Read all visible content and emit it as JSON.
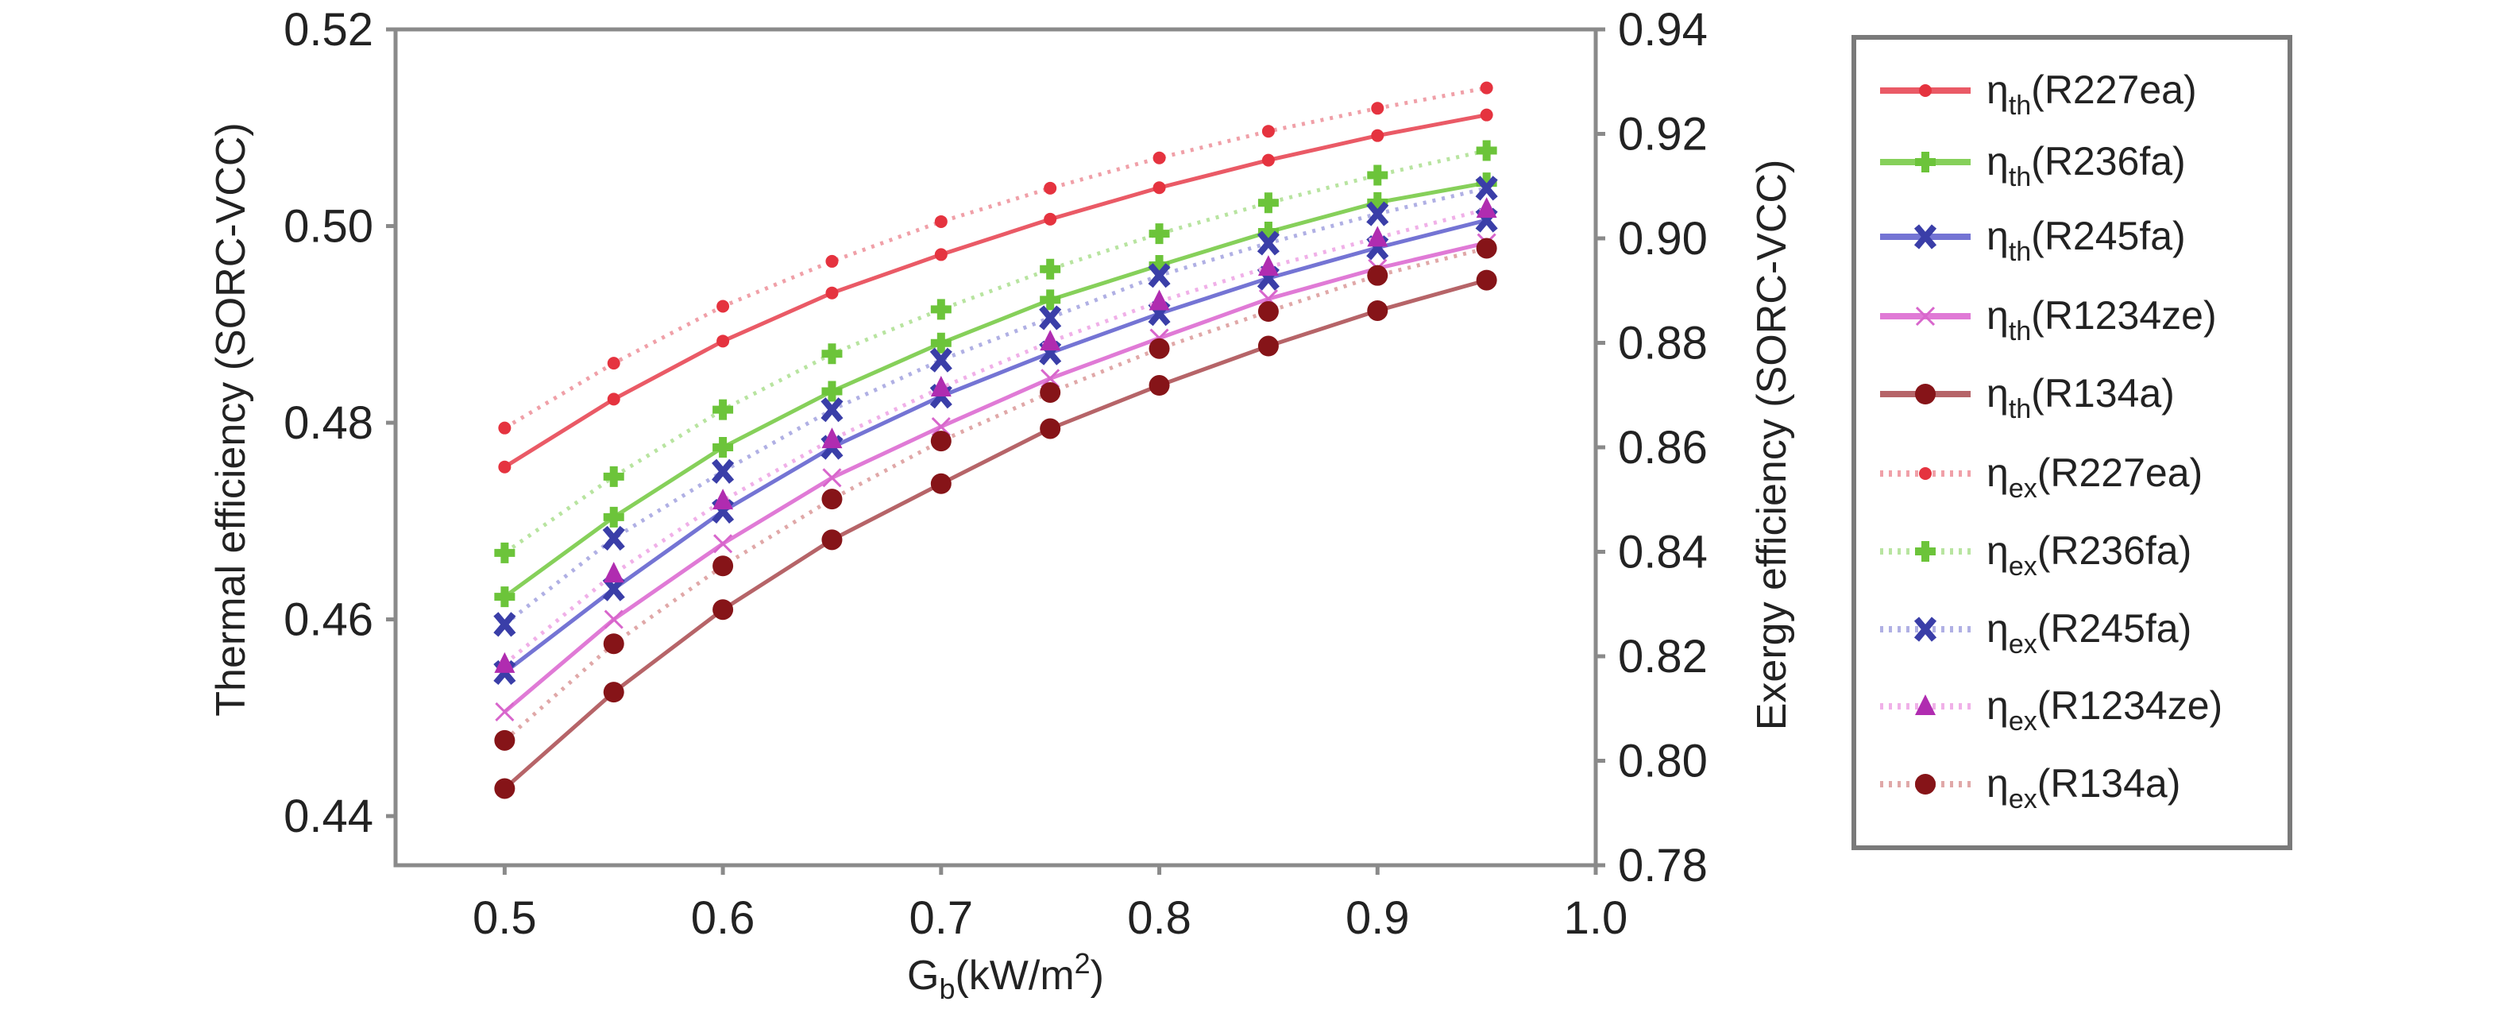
{
  "chart_data": {
    "type": "line",
    "xlabel": {
      "main": "G",
      "sub": "b",
      "rest": "(kW/m",
      "sup": "2",
      "end": ")"
    },
    "ylabel_left": "Thermal efficiency (SORC-VCC)",
    "ylabel_right": "Exergy efficiency (SORC-VCC)",
    "xlim": [
      0.45,
      1.0
    ],
    "ylim_left": [
      0.435,
      0.52
    ],
    "ylim_right": [
      0.78,
      0.94
    ],
    "xticks": [
      "0.5",
      "0.6",
      "0.7",
      "0.8",
      "0.9",
      "1.0"
    ],
    "yticks_left": [
      "0.44",
      "0.46",
      "0.48",
      "0.50",
      "0.52"
    ],
    "yticks_right": [
      "0.78",
      "0.80",
      "0.82",
      "0.84",
      "0.86",
      "0.88",
      "0.90",
      "0.92",
      "0.94"
    ],
    "grid": false,
    "legend_position": "right-outside",
    "x": [
      0.5,
      0.55,
      0.6,
      0.65,
      0.7,
      0.75,
      0.8,
      0.85,
      0.9,
      0.95
    ],
    "series": [
      {
        "name": "ηth(R227ea)",
        "sym": "η",
        "sub": "th",
        "fluid": "(R227ea)",
        "axis": "left",
        "style": "solid",
        "marker": "dot",
        "color": "#e5333f",
        "line_color": "#ea5a66",
        "values": [
          0.4755,
          0.4824,
          0.4883,
          0.4932,
          0.4971,
          0.5007,
          0.5039,
          0.5067,
          0.5092,
          0.5113
        ]
      },
      {
        "name": "ηth(R236fa)",
        "sym": "η",
        "sub": "th",
        "fluid": "(R236fa)",
        "axis": "left",
        "style": "solid",
        "marker": "plus",
        "color": "#6cc43a",
        "line_color": "#86d05a",
        "values": [
          0.4623,
          0.4704,
          0.4775,
          0.4832,
          0.4881,
          0.4925,
          0.496,
          0.4994,
          0.5024,
          0.5044
        ]
      },
      {
        "name": "ηth(R245fa)",
        "sym": "η",
        "sub": "th",
        "fluid": "(R245fa)",
        "axis": "left",
        "style": "solid",
        "marker": "xbold",
        "color": "#3a3ea8",
        "line_color": "#7474d4",
        "values": [
          0.4546,
          0.4631,
          0.471,
          0.4775,
          0.4827,
          0.4871,
          0.4911,
          0.4947,
          0.4978,
          0.5006
        ]
      },
      {
        "name": "ηth(R1234ze)",
        "sym": "η",
        "sub": "th",
        "fluid": "(R1234ze)",
        "axis": "left",
        "style": "solid",
        "marker": "xthin",
        "color": "#d866cc",
        "line_color": "#e07ad6",
        "values": [
          0.4506,
          0.46,
          0.4677,
          0.4744,
          0.4796,
          0.4845,
          0.4886,
          0.4926,
          0.4957,
          0.4983
        ]
      },
      {
        "name": "ηth(R134a)",
        "sym": "η",
        "sub": "th",
        "fluid": "(R134a)",
        "axis": "left",
        "style": "solid",
        "marker": "bigdot",
        "color": "#861418",
        "line_color": "#b66468",
        "values": [
          0.4428,
          0.4526,
          0.461,
          0.4681,
          0.4738,
          0.4794,
          0.4838,
          0.4878,
          0.4914,
          0.4945
        ]
      },
      {
        "name": "ηex(R227ea)",
        "sym": "η",
        "sub": "ex",
        "fluid": "(R227ea)",
        "axis": "right",
        "style": "dotted",
        "marker": "dot",
        "color": "#e5333f",
        "line_color": "#f0a0a8",
        "values": [
          0.8637,
          0.8761,
          0.887,
          0.8956,
          0.9032,
          0.9096,
          0.9154,
          0.9205,
          0.9249,
          0.9288
        ]
      },
      {
        "name": "ηex(R236fa)",
        "sym": "η",
        "sub": "ex",
        "fluid": "(R236fa)",
        "axis": "right",
        "style": "dotted",
        "marker": "plus",
        "color": "#6cc43a",
        "line_color": "#b8e4a0",
        "values": [
          0.8398,
          0.8544,
          0.8672,
          0.8779,
          0.8864,
          0.8941,
          0.9009,
          0.9068,
          0.9121,
          0.9168
        ]
      },
      {
        "name": "ηex(R245fa)",
        "sym": "η",
        "sub": "ex",
        "fluid": "(R245fa)",
        "axis": "right",
        "style": "dotted",
        "marker": "xbold",
        "color": "#3a3ea8",
        "line_color": "#b0b0e4",
        "values": [
          0.8261,
          0.8426,
          0.8554,
          0.8672,
          0.8767,
          0.8848,
          0.8929,
          0.8991,
          0.9047,
          0.9096
        ]
      },
      {
        "name": "ηex(R1234ze)",
        "sym": "η",
        "sub": "ex",
        "fluid": "(R1234ze)",
        "axis": "right",
        "style": "dotted",
        "marker": "triangle",
        "color": "#b02cb0",
        "line_color": "#f0b0e8",
        "values": [
          0.8185,
          0.8358,
          0.8498,
          0.8615,
          0.8714,
          0.8802,
          0.8879,
          0.8945,
          0.9001,
          0.9056
        ]
      },
      {
        "name": "ηex(R134a)",
        "sym": "η",
        "sub": "ex",
        "fluid": "(R134a)",
        "axis": "right",
        "style": "dotted",
        "marker": "bigdot",
        "color": "#861418",
        "line_color": "#e0a8a8",
        "values": [
          0.8039,
          0.8224,
          0.8373,
          0.8501,
          0.8612,
          0.8705,
          0.8789,
          0.886,
          0.8929,
          0.8981
        ]
      }
    ]
  }
}
